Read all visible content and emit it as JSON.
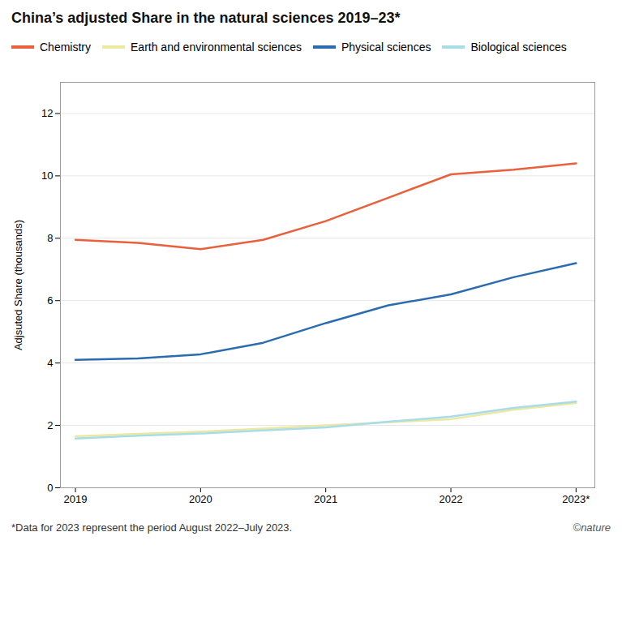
{
  "chart_data": {
    "type": "line",
    "title": "China’s adjusted Share in the natural sciences 2019–23*",
    "ylabel": "Adjsuted Share (thousands)",
    "annotations": [
      "*Data for 2023 represent the period August 2022–July 2023.",
      "©nature"
    ],
    "x": [
      2019,
      2019.5,
      2020,
      2020.5,
      2021,
      2021.5,
      2022,
      2022.5,
      2023
    ],
    "series": [
      {
        "name": "Chemistry",
        "color": "#e8603c",
        "values": [
          7.95,
          7.85,
          7.65,
          7.95,
          8.55,
          9.3,
          10.05,
          10.2,
          10.4
        ]
      },
      {
        "name": "Earth and environmental sciences",
        "color": "#ede8a0",
        "values": [
          1.65,
          1.73,
          1.8,
          1.9,
          2.0,
          2.1,
          2.2,
          2.5,
          2.72
        ]
      },
      {
        "name": "Physical sciences",
        "color": "#2b6cb0",
        "values": [
          4.1,
          4.15,
          4.28,
          4.65,
          5.28,
          5.85,
          6.2,
          6.75,
          7.2
        ]
      },
      {
        "name": "Biological sciences",
        "color": "#a8dce8",
        "values": [
          1.58,
          1.67,
          1.74,
          1.84,
          1.94,
          2.12,
          2.28,
          2.56,
          2.76
        ]
      }
    ],
    "xlim": [
      2018.88,
      2023.15
    ],
    "xticks": [
      2019,
      2020,
      2021,
      2022,
      {
        "value": 2023,
        "label": "2023*"
      }
    ],
    "ylim": [
      0,
      13
    ],
    "yticks": [
      0,
      2,
      4,
      6,
      8,
      10,
      12
    ],
    "grid": true,
    "legend": "top"
  }
}
